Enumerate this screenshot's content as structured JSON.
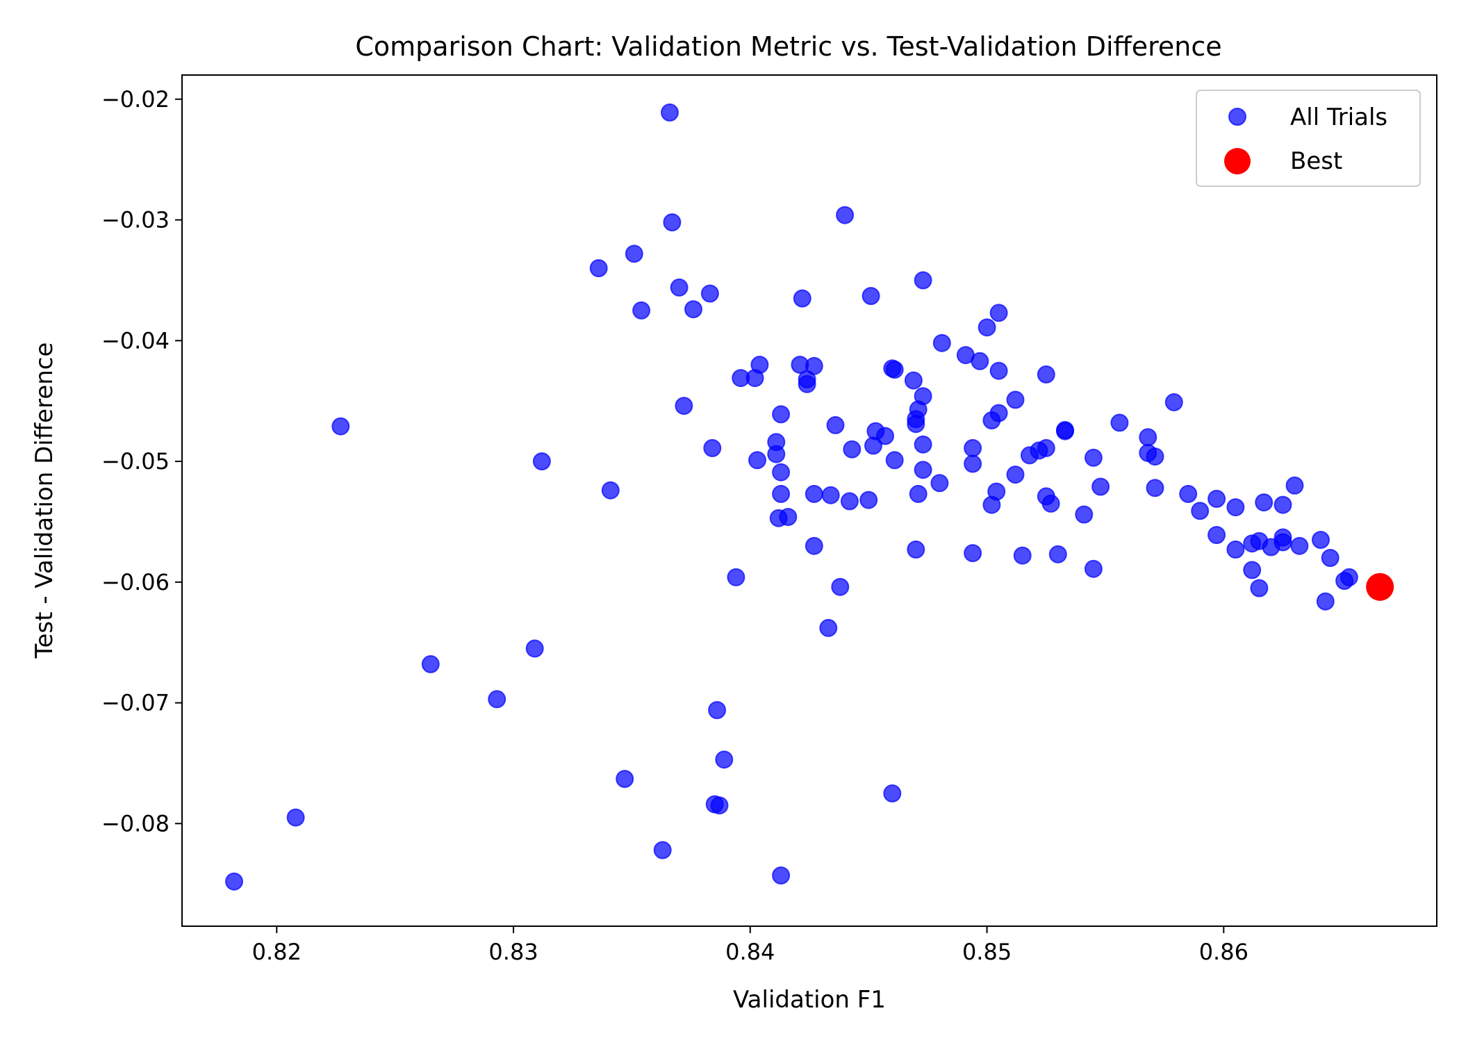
{
  "chart_data": {
    "type": "scatter",
    "title": "Comparison Chart: Validation Metric vs. Test-Validation Difference",
    "xlabel": "Validation F1",
    "ylabel": "Test - Validation Difference",
    "xlim": [
      0.816,
      0.869
    ],
    "ylim": [
      -0.0885,
      -0.018
    ],
    "xticks": [
      0.82,
      0.83,
      0.84,
      0.85,
      0.86
    ],
    "xtick_labels": [
      "0.82",
      "0.83",
      "0.84",
      "0.85",
      "0.86"
    ],
    "yticks": [
      -0.02,
      -0.03,
      -0.04,
      -0.05,
      -0.06,
      -0.07,
      -0.08
    ],
    "ytick_labels": [
      "−0.02",
      "−0.03",
      "−0.04",
      "−0.05",
      "−0.06",
      "−0.07",
      "−0.08"
    ],
    "grid": false,
    "legend_position": "top-right",
    "series": [
      {
        "name": "All Trials",
        "color": "#0000ff",
        "alpha": 0.7,
        "points": [
          [
            0.8182,
            -0.0848
          ],
          [
            0.8208,
            -0.0795
          ],
          [
            0.8227,
            -0.0471
          ],
          [
            0.8265,
            -0.0668
          ],
          [
            0.8293,
            -0.0697
          ],
          [
            0.8309,
            -0.0655
          ],
          [
            0.8312,
            -0.05
          ],
          [
            0.8336,
            -0.034
          ],
          [
            0.8341,
            -0.0524
          ],
          [
            0.8347,
            -0.0763
          ],
          [
            0.8351,
            -0.0328
          ],
          [
            0.8354,
            -0.0375
          ],
          [
            0.8363,
            -0.0822
          ],
          [
            0.8366,
            -0.0211
          ],
          [
            0.8367,
            -0.0302
          ],
          [
            0.837,
            -0.0356
          ],
          [
            0.8372,
            -0.0454
          ],
          [
            0.8376,
            -0.0374
          ],
          [
            0.8383,
            -0.0361
          ],
          [
            0.8384,
            -0.0489
          ],
          [
            0.8385,
            -0.0784
          ],
          [
            0.8386,
            -0.0706
          ],
          [
            0.8387,
            -0.0785
          ],
          [
            0.8389,
            -0.0747
          ],
          [
            0.8394,
            -0.0596
          ],
          [
            0.8396,
            -0.0431
          ],
          [
            0.8402,
            -0.0431
          ],
          [
            0.8403,
            -0.0499
          ],
          [
            0.8404,
            -0.042
          ],
          [
            0.8411,
            -0.0484
          ],
          [
            0.8411,
            -0.0494
          ],
          [
            0.8412,
            -0.0547
          ],
          [
            0.8413,
            -0.0461
          ],
          [
            0.8413,
            -0.0509
          ],
          [
            0.8413,
            -0.0527
          ],
          [
            0.8413,
            -0.0843
          ],
          [
            0.8416,
            -0.0546
          ],
          [
            0.8421,
            -0.042
          ],
          [
            0.8422,
            -0.0365
          ],
          [
            0.8424,
            -0.0432
          ],
          [
            0.8424,
            -0.0436
          ],
          [
            0.8427,
            -0.0421
          ],
          [
            0.8427,
            -0.0527
          ],
          [
            0.8427,
            -0.057
          ],
          [
            0.8433,
            -0.0638
          ],
          [
            0.8434,
            -0.0528
          ],
          [
            0.8436,
            -0.047
          ],
          [
            0.8438,
            -0.0604
          ],
          [
            0.844,
            -0.0296
          ],
          [
            0.8442,
            -0.0533
          ],
          [
            0.8443,
            -0.049
          ],
          [
            0.845,
            -0.0532
          ],
          [
            0.8451,
            -0.0363
          ],
          [
            0.8452,
            -0.0487
          ],
          [
            0.8453,
            -0.0475
          ],
          [
            0.8457,
            -0.0479
          ],
          [
            0.846,
            -0.0423
          ],
          [
            0.846,
            -0.0775
          ],
          [
            0.8461,
            -0.0499
          ],
          [
            0.8461,
            -0.0424
          ],
          [
            0.8469,
            -0.0433
          ],
          [
            0.847,
            -0.0573
          ],
          [
            0.847,
            -0.0465
          ],
          [
            0.847,
            -0.0469
          ],
          [
            0.8471,
            -0.0457
          ],
          [
            0.8471,
            -0.0527
          ],
          [
            0.8473,
            -0.0446
          ],
          [
            0.8473,
            -0.035
          ],
          [
            0.8473,
            -0.0507
          ],
          [
            0.8473,
            -0.0486
          ],
          [
            0.848,
            -0.0518
          ],
          [
            0.8481,
            -0.0402
          ],
          [
            0.8491,
            -0.0412
          ],
          [
            0.8494,
            -0.0576
          ],
          [
            0.8494,
            -0.0489
          ],
          [
            0.8494,
            -0.0502
          ],
          [
            0.8497,
            -0.0417
          ],
          [
            0.85,
            -0.0389
          ],
          [
            0.8502,
            -0.0536
          ],
          [
            0.8502,
            -0.0466
          ],
          [
            0.8504,
            -0.0525
          ],
          [
            0.8505,
            -0.046
          ],
          [
            0.8505,
            -0.0377
          ],
          [
            0.8505,
            -0.0425
          ],
          [
            0.8512,
            -0.0511
          ],
          [
            0.8512,
            -0.0449
          ],
          [
            0.8515,
            -0.0578
          ],
          [
            0.8518,
            -0.0495
          ],
          [
            0.8522,
            -0.0491
          ],
          [
            0.8525,
            -0.0489
          ],
          [
            0.8525,
            -0.0428
          ],
          [
            0.8525,
            -0.0529
          ],
          [
            0.8527,
            -0.0535
          ],
          [
            0.853,
            -0.0577
          ],
          [
            0.8533,
            -0.0474
          ],
          [
            0.8533,
            -0.0475
          ],
          [
            0.8541,
            -0.0544
          ],
          [
            0.8545,
            -0.0497
          ],
          [
            0.8545,
            -0.0589
          ],
          [
            0.8548,
            -0.0521
          ],
          [
            0.8556,
            -0.0468
          ],
          [
            0.8568,
            -0.048
          ],
          [
            0.8568,
            -0.0493
          ],
          [
            0.8571,
            -0.0496
          ],
          [
            0.8571,
            -0.0522
          ],
          [
            0.8579,
            -0.0451
          ],
          [
            0.8585,
            -0.0527
          ],
          [
            0.859,
            -0.0541
          ],
          [
            0.8597,
            -0.0561
          ],
          [
            0.8597,
            -0.0531
          ],
          [
            0.8605,
            -0.0573
          ],
          [
            0.8605,
            -0.0538
          ],
          [
            0.8612,
            -0.0568
          ],
          [
            0.8612,
            -0.059
          ],
          [
            0.8615,
            -0.0605
          ],
          [
            0.8615,
            -0.0566
          ],
          [
            0.8617,
            -0.0534
          ],
          [
            0.862,
            -0.0571
          ],
          [
            0.8625,
            -0.0536
          ],
          [
            0.8625,
            -0.0563
          ],
          [
            0.8625,
            -0.0567
          ],
          [
            0.863,
            -0.052
          ],
          [
            0.8632,
            -0.057
          ],
          [
            0.8641,
            -0.0565
          ],
          [
            0.8643,
            -0.0616
          ],
          [
            0.8645,
            -0.058
          ],
          [
            0.8651,
            -0.0599
          ],
          [
            0.8653,
            -0.0596
          ]
        ]
      },
      {
        "name": "Best",
        "color": "#ff0000",
        "alpha": 1.0,
        "points": [
          [
            0.8666,
            -0.0604
          ]
        ]
      }
    ]
  }
}
